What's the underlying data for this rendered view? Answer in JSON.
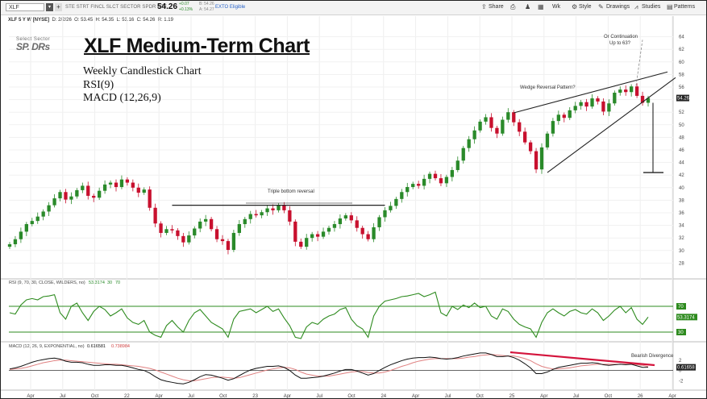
{
  "toolbar": {
    "symbol": "XLF",
    "fund_name": "STE STRT FINCL SLCT SECTOR SPDR ETF",
    "last_price": "54.26",
    "change": "+0.07",
    "change_pct": "+0.13%",
    "bid": "B: 54.26",
    "ask": "A: 54.27",
    "exto": "EXTO Eligible",
    "share_label": "Share",
    "timeframe": "Wk",
    "style_label": "Style",
    "drawings_label": "Drawings",
    "studies_label": "Studies",
    "patterns_label": "Patterns"
  },
  "info": {
    "symbol_line": "XLF 5 Y W [NYSE]",
    "date": "D: 2/2/26",
    "open": "O: 53.45",
    "high": "H: 54.35",
    "low": "L: 53.16",
    "close": "C: 54.26",
    "range": "R: 1.19"
  },
  "logo": {
    "top": "Select Sector",
    "main": "SP. DRs"
  },
  "heading": {
    "title": "XLF Medium-Term Chart",
    "line1": "Weekly Candlestick Chart",
    "line2": "RSI(9)",
    "line3": "MACD (12,26,9)"
  },
  "annotations": {
    "triple_bottom": "Triple bottom reversal",
    "wedge": "Wedge Reversal Pattern?",
    "continuation_1": "Or Continuation",
    "continuation_2": "Up to 63?",
    "bearish": "Bearish Divergence"
  },
  "colors": {
    "up": "#2a8a2a",
    "down": "#c8102e",
    "rsi": "#2e8b1f",
    "macd": "#111111",
    "signal": "#e08080",
    "trend": "#222222",
    "divergence": "#d4143c"
  },
  "chart_data": [
    {
      "type": "candlestick",
      "title": "XLF Medium-Term Chart",
      "ylim": [
        26,
        66
      ],
      "y_ticks": [
        28,
        30,
        32,
        34,
        36,
        38,
        40,
        42,
        44,
        46,
        48,
        50,
        52,
        54,
        56,
        58,
        60,
        62,
        64
      ],
      "x_labels": [
        "Apr",
        "Jul",
        "Oct",
        "22",
        "Apr",
        "Jul",
        "Oct",
        "23",
        "Apr",
        "Jul",
        "Oct",
        "24",
        "Apr",
        "Jul",
        "Oct",
        "25",
        "Apr",
        "Jul",
        "Oct",
        "26",
        "Apr"
      ],
      "last_value": 54.26,
      "closes_approx": [
        31,
        31.8,
        33,
        34.2,
        34.7,
        35.4,
        36.2,
        37.2,
        38.3,
        39.3,
        38.1,
        38.6,
        39.6,
        40.3,
        38.7,
        38.4,
        39.5,
        40.5,
        40.8,
        40.1,
        41.3,
        40.8,
        40,
        39.2,
        39.7,
        36.8,
        34.3,
        32.8,
        33.4,
        33.2,
        32.3,
        31.3,
        32.4,
        33.5,
        34.6,
        35,
        33.4,
        31.8,
        31.5,
        30.1,
        32.8,
        34.2,
        35,
        35.8,
        35.6,
        36.1,
        36.7,
        36.4,
        37.2,
        36.4,
        34.6,
        31.4,
        30.6,
        32,
        32.6,
        32.2,
        33,
        33.6,
        34.2,
        35.1,
        35.6,
        34.8,
        33.6,
        32.6,
        31.8,
        33.7,
        35.3,
        36.4,
        37.1,
        38.2,
        39.3,
        40.1,
        40.6,
        40.3,
        41.4,
        42.2,
        41.5,
        40.7,
        41.7,
        42.8,
        44.3,
        46.3,
        47.7,
        49.1,
        50.5,
        51.2,
        49.5,
        48.6,
        50.8,
        52,
        50.4,
        48.9,
        47.2,
        45.8,
        42.9,
        46.4,
        48.6,
        50.6,
        51.6,
        51.1,
        52.3,
        53,
        53.6,
        52.9,
        54.2,
        53.7,
        52.1,
        53.4,
        55.1,
        55.6,
        55.2,
        56.1,
        54.6,
        53.5,
        54.26
      ],
      "trendlines": [
        {
          "label": "Triple bottom reversal",
          "level": 37.2
        },
        {
          "label": "Wedge Reversal Pattern?",
          "upper": [
            51.9,
            57.4
          ],
          "lower": [
            42.4,
            55.5
          ]
        },
        {
          "label": "Or Continuation Up to 63?",
          "target": 63
        }
      ]
    },
    {
      "type": "line",
      "title": "RSI (9, 70, 30, CLOSE, WILDERS, no)",
      "values_header": [
        "53.3174",
        "30",
        "70"
      ],
      "levels": [
        30,
        70
      ],
      "last_value": 53.3174,
      "ylim": [
        20,
        100
      ],
      "series": [
        {
          "name": "RSI",
          "values": [
            60,
            58,
            72,
            80,
            82,
            80,
            85,
            86,
            88,
            60,
            50,
            70,
            75,
            60,
            48,
            62,
            70,
            65,
            55,
            60,
            66,
            52,
            45,
            42,
            48,
            30,
            25,
            22,
            40,
            48,
            38,
            30,
            48,
            60,
            65,
            55,
            45,
            40,
            35,
            22,
            50,
            62,
            64,
            66,
            60,
            65,
            70,
            62,
            66,
            52,
            40,
            22,
            20,
            38,
            45,
            42,
            50,
            55,
            58,
            65,
            68,
            50,
            40,
            35,
            22,
            55,
            70,
            78,
            80,
            82,
            85,
            86,
            88,
            90,
            85,
            88,
            92,
            60,
            55,
            70,
            65,
            72,
            68,
            75,
            68,
            70,
            55,
            50,
            66,
            62,
            50,
            42,
            38,
            35,
            22,
            45,
            60,
            66,
            60,
            55,
            62,
            65,
            60,
            58,
            66,
            60,
            48,
            55,
            64,
            70,
            60,
            68,
            50,
            42,
            53.3
          ]
        }
      ]
    },
    {
      "type": "line",
      "title": "MACD (12, 26, 9, EXPONENTIAL, no)",
      "values_header": [
        "0.616581",
        "0.738984"
      ],
      "last_value": 0.61658,
      "y_ticks": [
        -2,
        0,
        2
      ],
      "series": [
        {
          "name": "MACD",
          "values": [
            0.3,
            0.5,
            0.8,
            1.2,
            1.6,
            1.9,
            2.1,
            2.3,
            2.4,
            2.2,
            1.8,
            1.6,
            1.6,
            1.5,
            1.2,
            1.0,
            1.0,
            1.1,
            1.1,
            1.0,
            1.0,
            0.8,
            0.5,
            0.2,
            0.0,
            -0.5,
            -1.2,
            -1.8,
            -2.1,
            -2.3,
            -2.5,
            -2.6,
            -2.3,
            -1.8,
            -1.2,
            -0.8,
            -0.9,
            -1.2,
            -1.5,
            -1.9,
            -1.6,
            -1.0,
            -0.4,
            0.1,
            0.4,
            0.6,
            0.8,
            0.8,
            0.9,
            0.6,
            0.0,
            -0.9,
            -1.5,
            -1.5,
            -1.4,
            -1.3,
            -1.1,
            -0.8,
            -0.5,
            -0.1,
            0.2,
            0.2,
            -0.1,
            -0.5,
            -0.9,
            -0.6,
            0.0,
            0.6,
            1.1,
            1.5,
            1.9,
            2.2,
            2.4,
            2.5,
            2.5,
            2.6,
            2.5,
            2.3,
            2.2,
            2.3,
            2.5,
            2.8,
            3.0,
            3.2,
            3.4,
            3.4,
            3.1,
            2.7,
            2.7,
            2.8,
            2.5,
            2.0,
            1.3,
            0.5,
            -0.6,
            -0.6,
            -0.3,
            0.2,
            0.6,
            0.8,
            1.0,
            1.2,
            1.4,
            1.4,
            1.5,
            1.4,
            1.1,
            1.0,
            1.1,
            1.2,
            1.1,
            1.2,
            0.9,
            0.6,
            0.62
          ]
        },
        {
          "name": "Signal",
          "values": [
            0.2,
            0.3,
            0.4,
            0.6,
            0.9,
            1.2,
            1.5,
            1.7,
            1.9,
            2.0,
            2.0,
            1.9,
            1.8,
            1.7,
            1.6,
            1.5,
            1.4,
            1.3,
            1.2,
            1.2,
            1.1,
            1.0,
            0.9,
            0.8,
            0.6,
            0.4,
            0.1,
            -0.3,
            -0.7,
            -1.1,
            -1.5,
            -1.8,
            -2.0,
            -2.0,
            -1.8,
            -1.6,
            -1.4,
            -1.3,
            -1.3,
            -1.4,
            -1.5,
            -1.4,
            -1.1,
            -0.8,
            -0.5,
            -0.2,
            0.1,
            0.3,
            0.5,
            0.6,
            0.5,
            0.2,
            -0.3,
            -0.7,
            -0.9,
            -1.1,
            -1.1,
            -1.1,
            -0.9,
            -0.7,
            -0.5,
            -0.3,
            -0.2,
            -0.2,
            -0.4,
            -0.5,
            -0.5,
            -0.3,
            0.0,
            0.4,
            0.8,
            1.1,
            1.5,
            1.8,
            2.0,
            2.2,
            2.3,
            2.3,
            2.3,
            2.3,
            2.3,
            2.4,
            2.6,
            2.7,
            2.9,
            3.0,
            3.1,
            3.0,
            2.9,
            2.8,
            2.8,
            2.6,
            2.3,
            1.9,
            1.3,
            0.8,
            0.5,
            0.3,
            0.3,
            0.4,
            0.5,
            0.7,
            0.9,
            1.0,
            1.1,
            1.2,
            1.2,
            1.2,
            1.2,
            1.2,
            1.2,
            1.2,
            1.1,
            1.0,
            0.74
          ]
        }
      ]
    }
  ]
}
